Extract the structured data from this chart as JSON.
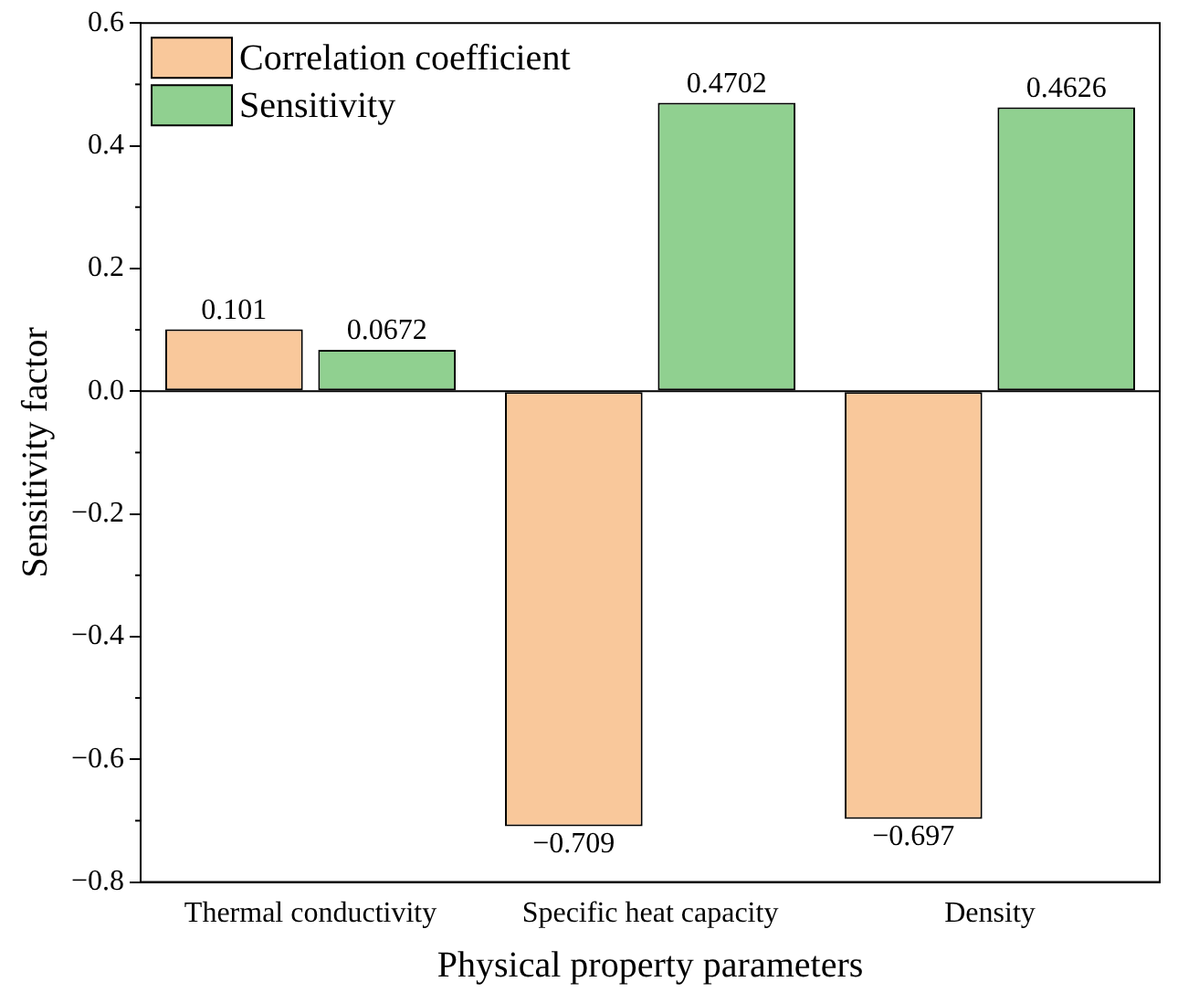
{
  "chart_data": {
    "type": "bar",
    "xlabel": "Physical property parameters",
    "ylabel": "Sensitivity factor",
    "categories": [
      "Thermal conductivity",
      "Specific heat capacity",
      "Density"
    ],
    "series": [
      {
        "name": "Correlation coefficient",
        "color": "#f9c89b",
        "values": [
          0.101,
          -0.709,
          -0.697
        ],
        "value_labels": [
          "0.101",
          "−0.709",
          "−0.697"
        ]
      },
      {
        "name": "Sensitivity",
        "color": "#90d090",
        "values": [
          0.0672,
          0.4702,
          0.4626
        ],
        "value_labels": [
          "0.0672",
          "0.4702",
          "0.4626"
        ]
      }
    ],
    "ylim": [
      -0.8,
      0.6
    ],
    "yticks": [
      {
        "value": -0.8,
        "label": "−0.8"
      },
      {
        "value": -0.6,
        "label": "−0.6"
      },
      {
        "value": -0.4,
        "label": "−0.4"
      },
      {
        "value": -0.2,
        "label": "−0.2"
      },
      {
        "value": 0,
        "label": "0.0"
      },
      0.2,
      0.4,
      0.6
    ],
    "ref_lines": [
      {
        "axis": "y",
        "value": 0
      }
    ],
    "grid": false,
    "legend": "top left"
  }
}
